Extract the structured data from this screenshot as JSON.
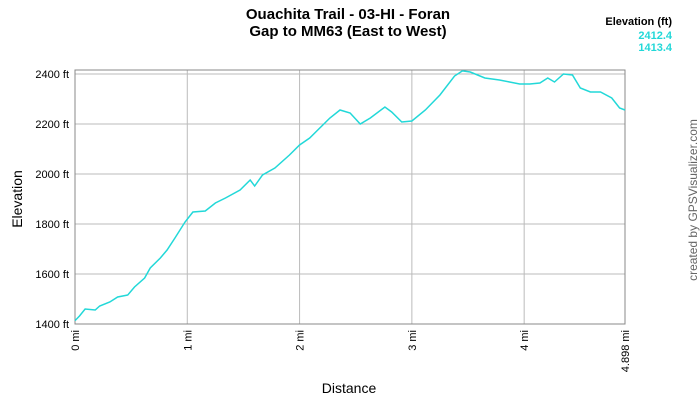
{
  "chart_data": {
    "type": "line",
    "title": [
      "Ouachita Trail - 03-HI - Foran",
      "Gap to MM63 (East to West)"
    ],
    "xlabel": "Distance",
    "ylabel": "Elevation",
    "credit": "created by GPSVisualizer.com",
    "legend": {
      "title": "Elevation (ft)",
      "max": 2412.4,
      "min": 1413.4,
      "color": "#22d8d8"
    },
    "grid": true,
    "xlim": [
      0,
      4.898
    ],
    "ylim": [
      1400,
      2416
    ],
    "xticks": [
      {
        "value": 0,
        "label": "0 mi"
      },
      {
        "value": 1,
        "label": "1 mi"
      },
      {
        "value": 2,
        "label": "2 mi"
      },
      {
        "value": 3,
        "label": "3 mi"
      },
      {
        "value": 4,
        "label": "4 mi"
      },
      {
        "value": 4.898,
        "label": "4.898 mi"
      }
    ],
    "yticks": [
      {
        "value": 1400,
        "label": "1400 ft"
      },
      {
        "value": 1600,
        "label": "1600 ft"
      },
      {
        "value": 1800,
        "label": "1800 ft"
      },
      {
        "value": 2000,
        "label": "2000 ft"
      },
      {
        "value": 2200,
        "label": "2200 ft"
      },
      {
        "value": 2400,
        "label": "2400 ft"
      }
    ],
    "x": [
      0,
      0.04,
      0.09,
      0.18,
      0.22,
      0.31,
      0.38,
      0.47,
      0.53,
      0.62,
      0.67,
      0.76,
      0.82,
      0.89,
      0.98,
      1.05,
      1.16,
      1.25,
      1.34,
      1.47,
      1.56,
      1.6,
      1.67,
      1.78,
      1.91,
      2.0,
      2.09,
      2.18,
      2.27,
      2.36,
      2.45,
      2.54,
      2.63,
      2.76,
      2.82,
      2.91,
      3.0,
      3.12,
      3.25,
      3.38,
      3.45,
      3.52,
      3.65,
      3.78,
      3.87,
      3.96,
      4.05,
      4.14,
      4.21,
      4.27,
      4.35,
      4.43,
      4.5,
      4.59,
      4.68,
      4.78,
      4.85,
      4.898
    ],
    "series": [
      {
        "name": "Elevation",
        "color": "#22d8d8",
        "values": [
          1413.4,
          1432,
          1460,
          1456,
          1472,
          1488,
          1508,
          1516,
          1548,
          1584,
          1624,
          1664,
          1696,
          1744,
          1808,
          1848,
          1852,
          1884,
          1904,
          1936,
          1976,
          1952,
          1996,
          2024,
          2076,
          2116,
          2144,
          2184,
          2224,
          2256,
          2244,
          2200,
          2224,
          2268,
          2248,
          2208,
          2212,
          2256,
          2316,
          2392,
          2412.4,
          2408,
          2384,
          2376,
          2368,
          2360,
          2360,
          2364,
          2384,
          2368,
          2400,
          2396,
          2344,
          2328,
          2328,
          2304,
          2264,
          2256
        ]
      }
    ]
  }
}
